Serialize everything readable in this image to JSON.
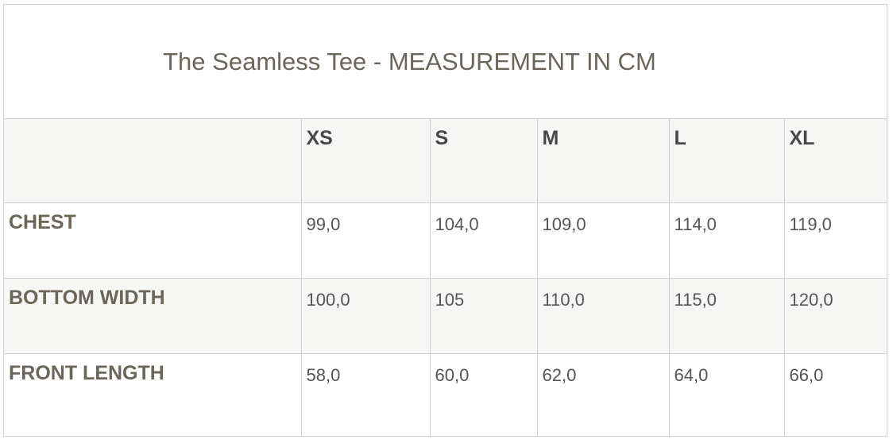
{
  "title": "The Seamless Tee - MEASUREMENT IN CM",
  "sizes": [
    "XS",
    "S",
    "M",
    "L",
    "XL"
  ],
  "rows": [
    {
      "label": "CHEST",
      "values": [
        "99,0",
        "104,0",
        "109,0",
        "114,0",
        "119,0"
      ]
    },
    {
      "label": "BOTTOM WIDTH",
      "values": [
        "100,0",
        "105",
        "110,0",
        "115,0",
        "120,0"
      ]
    },
    {
      "label": "FRONT LENGTH",
      "values": [
        "58,0",
        "60,0",
        "62,0",
        "64,0",
        "66,0"
      ]
    }
  ]
}
